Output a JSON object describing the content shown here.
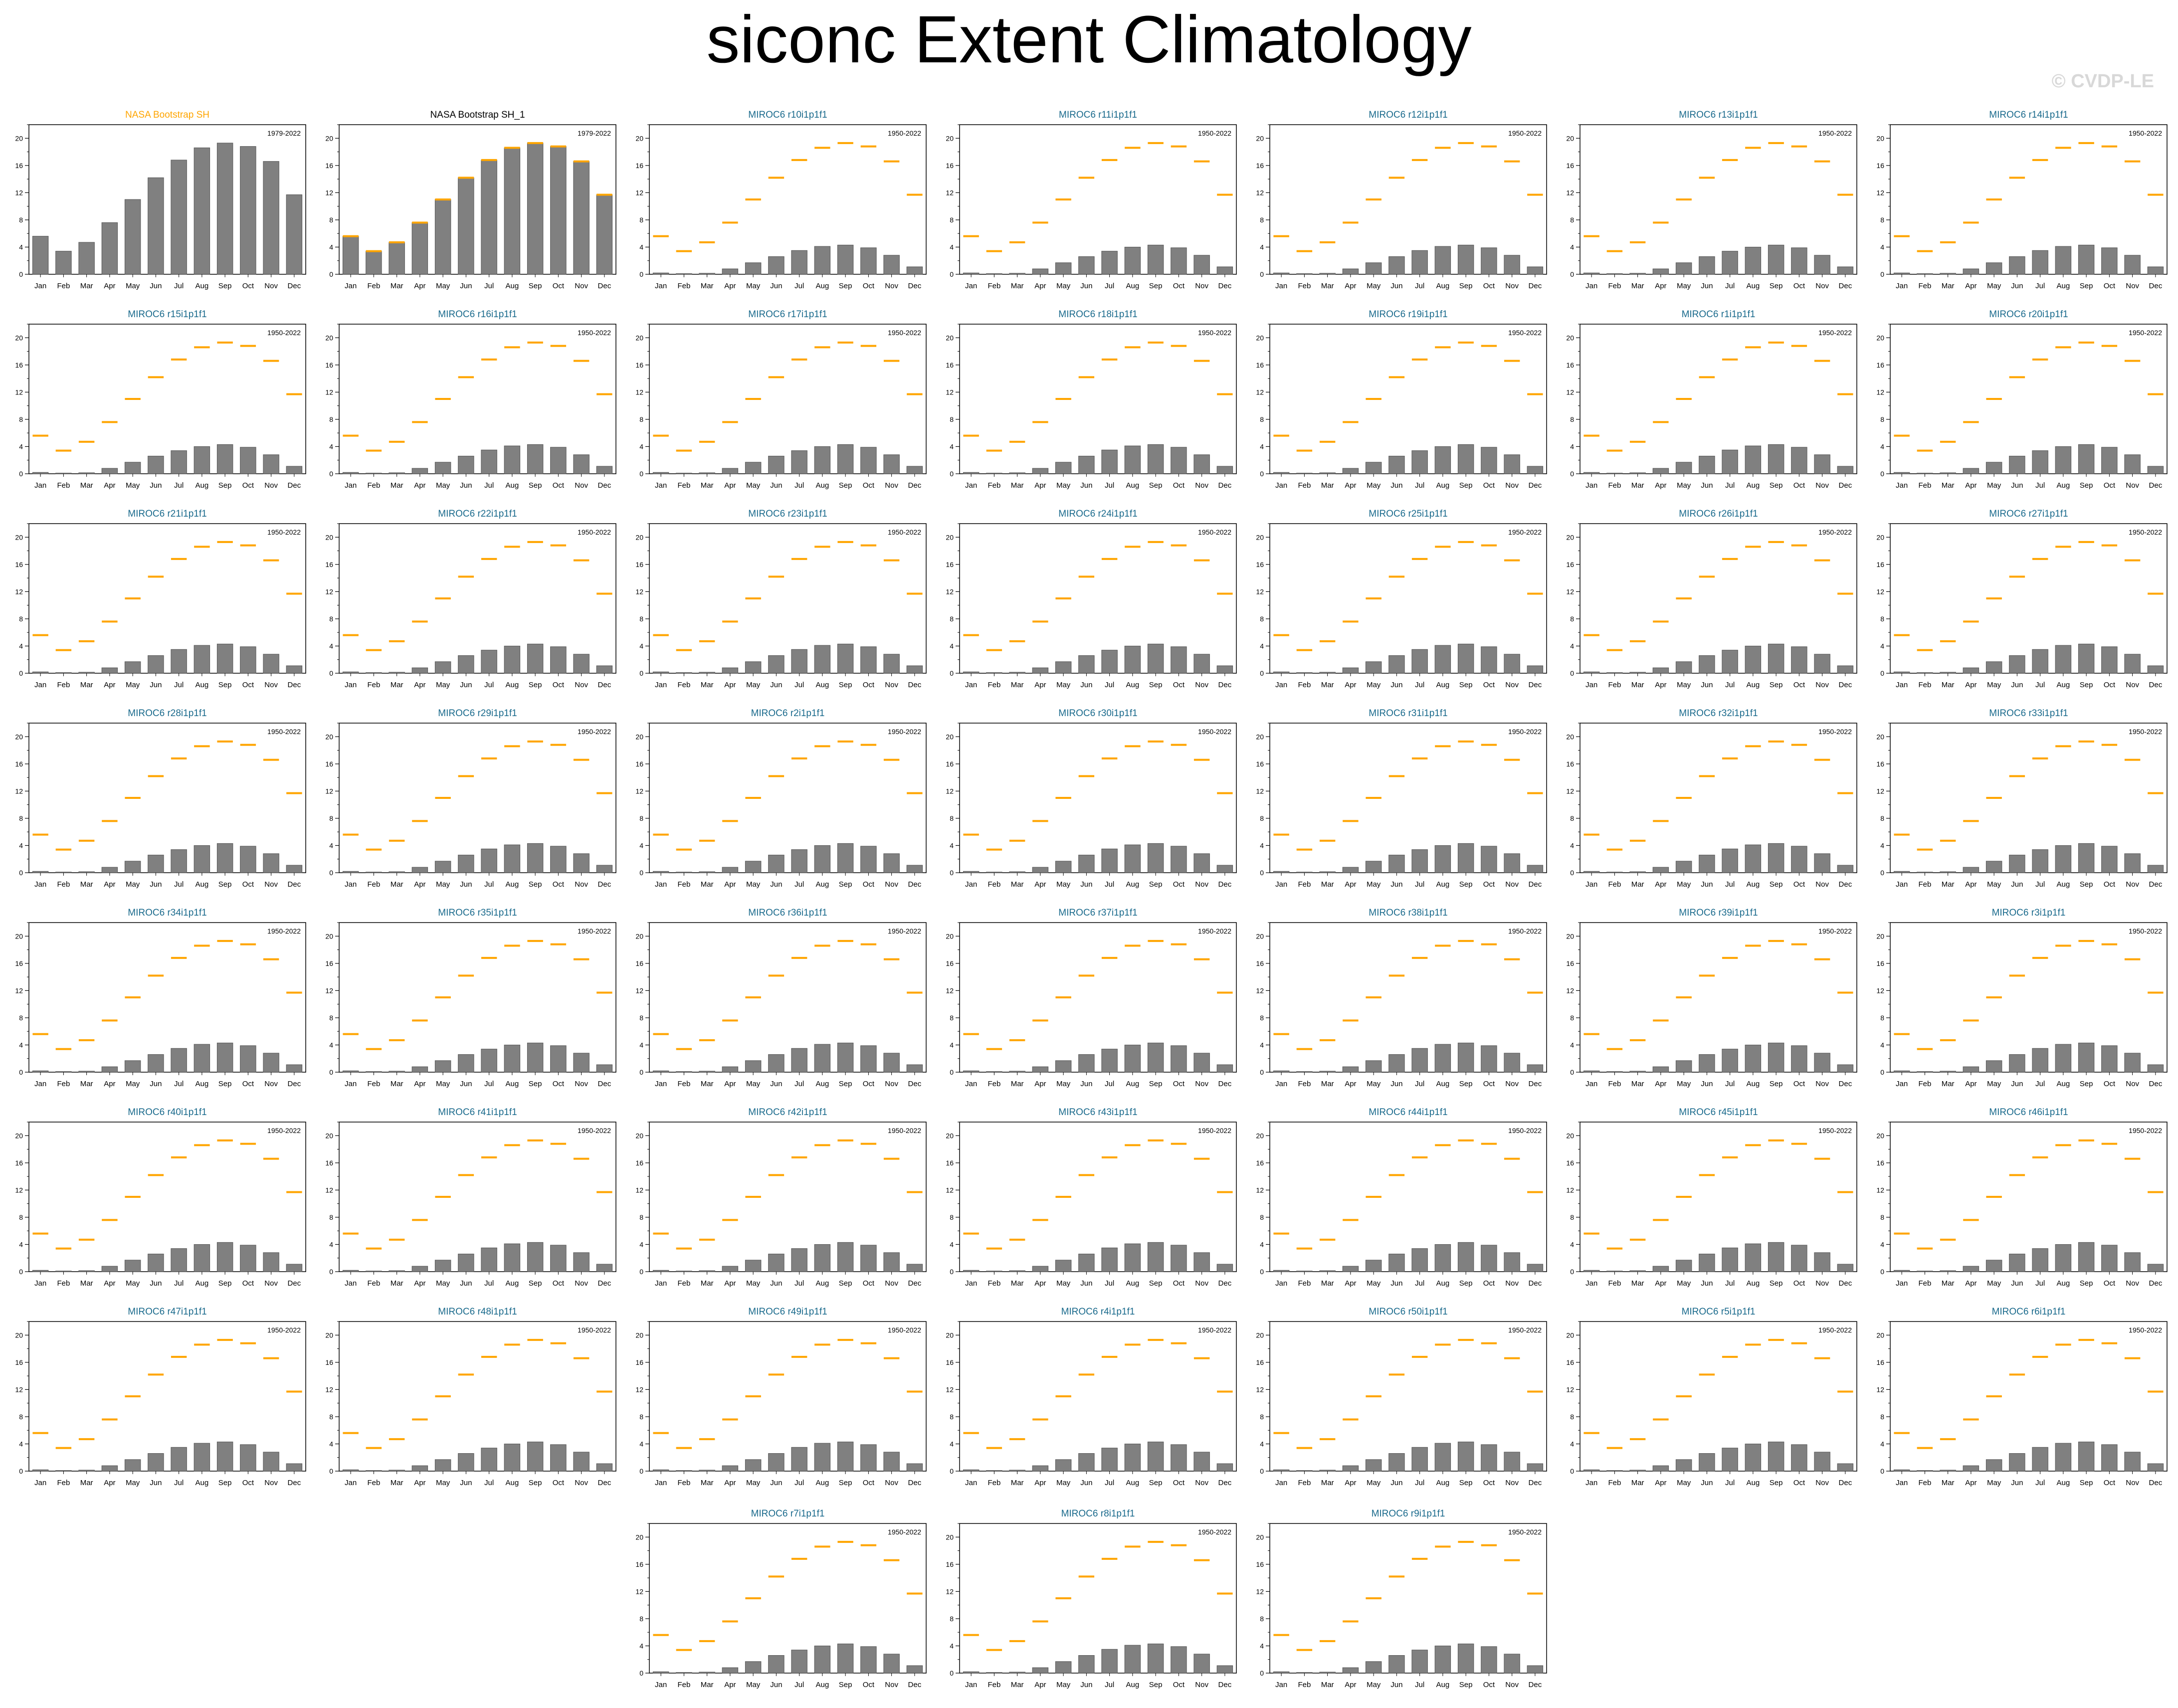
{
  "title": "siconc Extent Climatology",
  "copyright": "© CVDP-LE",
  "colors": {
    "bar": "#808080",
    "bar_edge": "#555555",
    "obs_marker": "#FFA500",
    "obs_title": "#FFA500",
    "model_title": "#1a6a8c",
    "ref_title": "#000000"
  },
  "chart_data": {
    "type": "bar",
    "months": [
      "Jan",
      "Feb",
      "Mar",
      "Apr",
      "May",
      "Jun",
      "Jul",
      "Aug",
      "Sep",
      "Oct",
      "Nov",
      "Dec"
    ],
    "y_ticks": [
      0,
      4,
      8,
      12,
      16,
      20
    ],
    "ylim": [
      0,
      22
    ],
    "observed_climatology": {
      "name": "NASA Bootstrap SH",
      "values": [
        5.6,
        3.4,
        4.7,
        7.6,
        11.0,
        14.2,
        16.8,
        18.6,
        19.3,
        18.8,
        16.6,
        11.7
      ]
    },
    "model_climatology": [
      0.2,
      0.1,
      0.15,
      0.8,
      1.7,
      2.6,
      3.4,
      4.0,
      4.3,
      3.9,
      2.8,
      1.1
    ],
    "panels": [
      {
        "title": "NASA Bootstrap SH",
        "period": "1979-2022",
        "kind": "obs",
        "values": [
          5.6,
          3.4,
          4.7,
          7.6,
          11.0,
          14.2,
          16.8,
          18.6,
          19.3,
          18.8,
          16.6,
          11.7
        ],
        "show_ref": false
      },
      {
        "title": "NASA Bootstrap SH_1",
        "period": "1979-2022",
        "kind": "ref",
        "values": [
          5.6,
          3.4,
          4.7,
          7.6,
          11.0,
          14.2,
          16.8,
          18.6,
          19.3,
          18.8,
          16.6,
          11.7
        ],
        "show_ref": true
      },
      {
        "title": "MIROC6 r10i1p1f1",
        "period": "1950-2022",
        "kind": "model",
        "values": [
          0.2,
          0.1,
          0.15,
          0.8,
          1.7,
          2.6,
          3.5,
          4.1,
          4.3,
          3.9,
          2.8,
          1.1
        ],
        "show_ref": true
      },
      {
        "title": "MIROC6 r11i1p1f1",
        "period": "1950-2022",
        "kind": "model",
        "values": [
          0.2,
          0.1,
          0.15,
          0.8,
          1.7,
          2.6,
          3.4,
          4.0,
          4.3,
          3.9,
          2.8,
          1.1
        ],
        "show_ref": true
      },
      {
        "title": "MIROC6 r12i1p1f1",
        "period": "1950-2022",
        "kind": "model",
        "values": [
          0.2,
          0.1,
          0.15,
          0.8,
          1.7,
          2.6,
          3.5,
          4.1,
          4.3,
          3.9,
          2.8,
          1.1
        ],
        "show_ref": true
      },
      {
        "title": "MIROC6 r13i1p1f1",
        "period": "1950-2022",
        "kind": "model",
        "values": [
          0.2,
          0.1,
          0.15,
          0.8,
          1.7,
          2.6,
          3.4,
          4.0,
          4.3,
          3.9,
          2.8,
          1.1
        ],
        "show_ref": true
      },
      {
        "title": "MIROC6 r14i1p1f1",
        "period": "1950-2022",
        "kind": "model",
        "values": [
          0.2,
          0.1,
          0.15,
          0.8,
          1.7,
          2.6,
          3.5,
          4.1,
          4.3,
          3.9,
          2.8,
          1.1
        ],
        "show_ref": true
      },
      {
        "title": "MIROC6 r15i1p1f1",
        "period": "1950-2022",
        "kind": "model",
        "values": [
          0.2,
          0.1,
          0.15,
          0.8,
          1.7,
          2.6,
          3.4,
          4.0,
          4.3,
          3.9,
          2.8,
          1.1
        ],
        "show_ref": true
      },
      {
        "title": "MIROC6 r16i1p1f1",
        "period": "1950-2022",
        "kind": "model",
        "values": [
          0.2,
          0.1,
          0.15,
          0.8,
          1.7,
          2.6,
          3.5,
          4.1,
          4.3,
          3.9,
          2.8,
          1.1
        ],
        "show_ref": true
      },
      {
        "title": "MIROC6 r17i1p1f1",
        "period": "1950-2022",
        "kind": "model",
        "values": [
          0.2,
          0.1,
          0.15,
          0.8,
          1.7,
          2.6,
          3.4,
          4.0,
          4.3,
          3.9,
          2.8,
          1.1
        ],
        "show_ref": true
      },
      {
        "title": "MIROC6 r18i1p1f1",
        "period": "1950-2022",
        "kind": "model",
        "values": [
          0.2,
          0.1,
          0.15,
          0.8,
          1.7,
          2.6,
          3.5,
          4.1,
          4.3,
          3.9,
          2.8,
          1.1
        ],
        "show_ref": true
      },
      {
        "title": "MIROC6 r19i1p1f1",
        "period": "1950-2022",
        "kind": "model",
        "values": [
          0.2,
          0.1,
          0.15,
          0.8,
          1.7,
          2.6,
          3.4,
          4.0,
          4.3,
          3.9,
          2.8,
          1.1
        ],
        "show_ref": true
      },
      {
        "title": "MIROC6 r1i1p1f1",
        "period": "1950-2022",
        "kind": "model",
        "values": [
          0.2,
          0.1,
          0.15,
          0.8,
          1.7,
          2.6,
          3.5,
          4.1,
          4.3,
          3.9,
          2.8,
          1.1
        ],
        "show_ref": true
      },
      {
        "title": "MIROC6 r20i1p1f1",
        "period": "1950-2022",
        "kind": "model",
        "values": [
          0.2,
          0.1,
          0.15,
          0.8,
          1.7,
          2.6,
          3.4,
          4.0,
          4.3,
          3.9,
          2.8,
          1.1
        ],
        "show_ref": true
      },
      {
        "title": "MIROC6 r21i1p1f1",
        "period": "1950-2022",
        "kind": "model",
        "values": [
          0.2,
          0.1,
          0.15,
          0.8,
          1.7,
          2.6,
          3.5,
          4.1,
          4.3,
          3.9,
          2.8,
          1.1
        ],
        "show_ref": true
      },
      {
        "title": "MIROC6 r22i1p1f1",
        "period": "1950-2022",
        "kind": "model",
        "values": [
          0.2,
          0.1,
          0.15,
          0.8,
          1.7,
          2.6,
          3.4,
          4.0,
          4.3,
          3.9,
          2.8,
          1.1
        ],
        "show_ref": true
      },
      {
        "title": "MIROC6 r23i1p1f1",
        "period": "1950-2022",
        "kind": "model",
        "values": [
          0.2,
          0.1,
          0.15,
          0.8,
          1.7,
          2.6,
          3.5,
          4.1,
          4.3,
          3.9,
          2.8,
          1.1
        ],
        "show_ref": true
      },
      {
        "title": "MIROC6 r24i1p1f1",
        "period": "1950-2022",
        "kind": "model",
        "values": [
          0.2,
          0.1,
          0.15,
          0.8,
          1.7,
          2.6,
          3.4,
          4.0,
          4.3,
          3.9,
          2.8,
          1.1
        ],
        "show_ref": true
      },
      {
        "title": "MIROC6 r25i1p1f1",
        "period": "1950-2022",
        "kind": "model",
        "values": [
          0.2,
          0.1,
          0.15,
          0.8,
          1.7,
          2.6,
          3.5,
          4.1,
          4.3,
          3.9,
          2.8,
          1.1
        ],
        "show_ref": true
      },
      {
        "title": "MIROC6 r26i1p1f1",
        "period": "1950-2022",
        "kind": "model",
        "values": [
          0.2,
          0.1,
          0.15,
          0.8,
          1.7,
          2.6,
          3.4,
          4.0,
          4.3,
          3.9,
          2.8,
          1.1
        ],
        "show_ref": true
      },
      {
        "title": "MIROC6 r27i1p1f1",
        "period": "1950-2022",
        "kind": "model",
        "values": [
          0.2,
          0.1,
          0.15,
          0.8,
          1.7,
          2.6,
          3.5,
          4.1,
          4.3,
          3.9,
          2.8,
          1.1
        ],
        "show_ref": true
      },
      {
        "title": "MIROC6 r28i1p1f1",
        "period": "1950-2022",
        "kind": "model",
        "values": [
          0.2,
          0.1,
          0.15,
          0.8,
          1.7,
          2.6,
          3.4,
          4.0,
          4.3,
          3.9,
          2.8,
          1.1
        ],
        "show_ref": true
      },
      {
        "title": "MIROC6 r29i1p1f1",
        "period": "1950-2022",
        "kind": "model",
        "values": [
          0.2,
          0.1,
          0.15,
          0.8,
          1.7,
          2.6,
          3.5,
          4.1,
          4.3,
          3.9,
          2.8,
          1.1
        ],
        "show_ref": true
      },
      {
        "title": "MIROC6 r2i1p1f1",
        "period": "1950-2022",
        "kind": "model",
        "values": [
          0.2,
          0.1,
          0.15,
          0.8,
          1.7,
          2.6,
          3.4,
          4.0,
          4.3,
          3.9,
          2.8,
          1.1
        ],
        "show_ref": true
      },
      {
        "title": "MIROC6 r30i1p1f1",
        "period": "1950-2022",
        "kind": "model",
        "values": [
          0.2,
          0.1,
          0.15,
          0.8,
          1.7,
          2.6,
          3.5,
          4.1,
          4.3,
          3.9,
          2.8,
          1.1
        ],
        "show_ref": true
      },
      {
        "title": "MIROC6 r31i1p1f1",
        "period": "1950-2022",
        "kind": "model",
        "values": [
          0.2,
          0.1,
          0.15,
          0.8,
          1.7,
          2.6,
          3.4,
          4.0,
          4.3,
          3.9,
          2.8,
          1.1
        ],
        "show_ref": true
      },
      {
        "title": "MIROC6 r32i1p1f1",
        "period": "1950-2022",
        "kind": "model",
        "values": [
          0.2,
          0.1,
          0.15,
          0.8,
          1.7,
          2.6,
          3.5,
          4.1,
          4.3,
          3.9,
          2.8,
          1.1
        ],
        "show_ref": true
      },
      {
        "title": "MIROC6 r33i1p1f1",
        "period": "1950-2022",
        "kind": "model",
        "values": [
          0.2,
          0.1,
          0.15,
          0.8,
          1.7,
          2.6,
          3.4,
          4.0,
          4.3,
          3.9,
          2.8,
          1.1
        ],
        "show_ref": true
      },
      {
        "title": "MIROC6 r34i1p1f1",
        "period": "1950-2022",
        "kind": "model",
        "values": [
          0.2,
          0.1,
          0.15,
          0.8,
          1.7,
          2.6,
          3.5,
          4.1,
          4.3,
          3.9,
          2.8,
          1.1
        ],
        "show_ref": true
      },
      {
        "title": "MIROC6 r35i1p1f1",
        "period": "1950-2022",
        "kind": "model",
        "values": [
          0.2,
          0.1,
          0.15,
          0.8,
          1.7,
          2.6,
          3.4,
          4.0,
          4.3,
          3.9,
          2.8,
          1.1
        ],
        "show_ref": true
      },
      {
        "title": "MIROC6 r36i1p1f1",
        "period": "1950-2022",
        "kind": "model",
        "values": [
          0.2,
          0.1,
          0.15,
          0.8,
          1.7,
          2.6,
          3.5,
          4.1,
          4.3,
          3.9,
          2.8,
          1.1
        ],
        "show_ref": true
      },
      {
        "title": "MIROC6 r37i1p1f1",
        "period": "1950-2022",
        "kind": "model",
        "values": [
          0.2,
          0.1,
          0.15,
          0.8,
          1.7,
          2.6,
          3.4,
          4.0,
          4.3,
          3.9,
          2.8,
          1.1
        ],
        "show_ref": true
      },
      {
        "title": "MIROC6 r38i1p1f1",
        "period": "1950-2022",
        "kind": "model",
        "values": [
          0.2,
          0.1,
          0.15,
          0.8,
          1.7,
          2.6,
          3.5,
          4.1,
          4.3,
          3.9,
          2.8,
          1.1
        ],
        "show_ref": true
      },
      {
        "title": "MIROC6 r39i1p1f1",
        "period": "1950-2022",
        "kind": "model",
        "values": [
          0.2,
          0.1,
          0.15,
          0.8,
          1.7,
          2.6,
          3.4,
          4.0,
          4.3,
          3.9,
          2.8,
          1.1
        ],
        "show_ref": true
      },
      {
        "title": "MIROC6 r3i1p1f1",
        "period": "1950-2022",
        "kind": "model",
        "values": [
          0.2,
          0.1,
          0.15,
          0.8,
          1.7,
          2.6,
          3.5,
          4.1,
          4.3,
          3.9,
          2.8,
          1.1
        ],
        "show_ref": true
      },
      {
        "title": "MIROC6 r40i1p1f1",
        "period": "1950-2022",
        "kind": "model",
        "values": [
          0.2,
          0.1,
          0.15,
          0.8,
          1.7,
          2.6,
          3.4,
          4.0,
          4.3,
          3.9,
          2.8,
          1.1
        ],
        "show_ref": true
      },
      {
        "title": "MIROC6 r41i1p1f1",
        "period": "1950-2022",
        "kind": "model",
        "values": [
          0.2,
          0.1,
          0.15,
          0.8,
          1.7,
          2.6,
          3.5,
          4.1,
          4.3,
          3.9,
          2.8,
          1.1
        ],
        "show_ref": true
      },
      {
        "title": "MIROC6 r42i1p1f1",
        "period": "1950-2022",
        "kind": "model",
        "values": [
          0.2,
          0.1,
          0.15,
          0.8,
          1.7,
          2.6,
          3.4,
          4.0,
          4.3,
          3.9,
          2.8,
          1.1
        ],
        "show_ref": true
      },
      {
        "title": "MIROC6 r43i1p1f1",
        "period": "1950-2022",
        "kind": "model",
        "values": [
          0.2,
          0.1,
          0.15,
          0.8,
          1.7,
          2.6,
          3.5,
          4.1,
          4.3,
          3.9,
          2.8,
          1.1
        ],
        "show_ref": true
      },
      {
        "title": "MIROC6 r44i1p1f1",
        "period": "1950-2022",
        "kind": "model",
        "values": [
          0.2,
          0.1,
          0.15,
          0.8,
          1.7,
          2.6,
          3.4,
          4.0,
          4.3,
          3.9,
          2.8,
          1.1
        ],
        "show_ref": true
      },
      {
        "title": "MIROC6 r45i1p1f1",
        "period": "1950-2022",
        "kind": "model",
        "values": [
          0.2,
          0.1,
          0.15,
          0.8,
          1.7,
          2.6,
          3.5,
          4.1,
          4.3,
          3.9,
          2.8,
          1.1
        ],
        "show_ref": true
      },
      {
        "title": "MIROC6 r46i1p1f1",
        "period": "1950-2022",
        "kind": "model",
        "values": [
          0.2,
          0.1,
          0.15,
          0.8,
          1.7,
          2.6,
          3.4,
          4.0,
          4.3,
          3.9,
          2.8,
          1.1
        ],
        "show_ref": true
      },
      {
        "title": "MIROC6 r47i1p1f1",
        "period": "1950-2022",
        "kind": "model",
        "values": [
          0.2,
          0.1,
          0.15,
          0.8,
          1.7,
          2.6,
          3.5,
          4.1,
          4.3,
          3.9,
          2.8,
          1.1
        ],
        "show_ref": true
      },
      {
        "title": "MIROC6 r48i1p1f1",
        "period": "1950-2022",
        "kind": "model",
        "values": [
          0.2,
          0.1,
          0.15,
          0.8,
          1.7,
          2.6,
          3.4,
          4.0,
          4.3,
          3.9,
          2.8,
          1.1
        ],
        "show_ref": true
      },
      {
        "title": "MIROC6 r49i1p1f1",
        "period": "1950-2022",
        "kind": "model",
        "values": [
          0.2,
          0.1,
          0.15,
          0.8,
          1.7,
          2.6,
          3.5,
          4.1,
          4.3,
          3.9,
          2.8,
          1.1
        ],
        "show_ref": true
      },
      {
        "title": "MIROC6 r4i1p1f1",
        "period": "1950-2022",
        "kind": "model",
        "values": [
          0.2,
          0.1,
          0.15,
          0.8,
          1.7,
          2.6,
          3.4,
          4.0,
          4.3,
          3.9,
          2.8,
          1.1
        ],
        "show_ref": true
      },
      {
        "title": "MIROC6 r50i1p1f1",
        "period": "1950-2022",
        "kind": "model",
        "values": [
          0.2,
          0.1,
          0.15,
          0.8,
          1.7,
          2.6,
          3.5,
          4.1,
          4.3,
          3.9,
          2.8,
          1.1
        ],
        "show_ref": true
      },
      {
        "title": "MIROC6 r5i1p1f1",
        "period": "1950-2022",
        "kind": "model",
        "values": [
          0.2,
          0.1,
          0.15,
          0.8,
          1.7,
          2.6,
          3.4,
          4.0,
          4.3,
          3.9,
          2.8,
          1.1
        ],
        "show_ref": true
      },
      {
        "title": "MIROC6 r6i1p1f1",
        "period": "1950-2022",
        "kind": "model",
        "values": [
          0.2,
          0.1,
          0.15,
          0.8,
          1.7,
          2.6,
          3.5,
          4.1,
          4.3,
          3.9,
          2.8,
          1.1
        ],
        "show_ref": true
      },
      {
        "title": "MIROC6 r7i1p1f1",
        "period": "1950-2022",
        "kind": "model",
        "values": [
          0.2,
          0.1,
          0.15,
          0.8,
          1.7,
          2.6,
          3.4,
          4.0,
          4.3,
          3.9,
          2.8,
          1.1
        ],
        "show_ref": true
      },
      {
        "title": "MIROC6 r8i1p1f1",
        "period": "1950-2022",
        "kind": "model",
        "values": [
          0.2,
          0.1,
          0.15,
          0.8,
          1.7,
          2.6,
          3.5,
          4.1,
          4.3,
          3.9,
          2.8,
          1.1
        ],
        "show_ref": true
      },
      {
        "title": "MIROC6 r9i1p1f1",
        "period": "1950-2022",
        "kind": "model",
        "values": [
          0.2,
          0.1,
          0.15,
          0.8,
          1.7,
          2.6,
          3.4,
          4.0,
          4.3,
          3.9,
          2.8,
          1.1
        ],
        "show_ref": true
      }
    ]
  }
}
